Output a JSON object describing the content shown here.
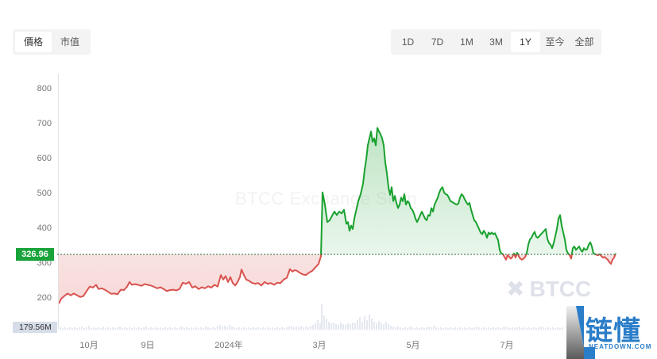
{
  "tabs_left": [
    {
      "label": "價格",
      "active": true
    },
    {
      "label": "市值",
      "active": false
    }
  ],
  "tabs_right": [
    {
      "label": "1D",
      "active": false
    },
    {
      "label": "7D",
      "active": false
    },
    {
      "label": "1M",
      "active": false
    },
    {
      "label": "3M",
      "active": false
    },
    {
      "label": "1Y",
      "active": true
    },
    {
      "label": "至今",
      "active": false
    },
    {
      "label": "全部",
      "active": false
    }
  ],
  "current_price_label": "326.96",
  "volume_label": "179.56M",
  "watermark": "BTCC Exchange Scan",
  "btcc_logo": {
    "symbol": "✖",
    "text": "BTCC"
  },
  "neatdown_logo": {
    "cn": "链懂",
    "en": "NEATDOWN.COM"
  },
  "colors": {
    "up": "#1aa12f",
    "down": "#d9534f",
    "price_tag": "#19a33a",
    "volume": "#c8d2e0",
    "reference_line": "#2d6b36"
  },
  "chart_data": {
    "type": "area",
    "title": "",
    "xlabel": "",
    "ylabel": "",
    "ylim": [
      150,
      850
    ],
    "yticks": [
      200,
      300,
      400,
      500,
      600,
      700,
      800
    ],
    "xticks": [
      "10月",
      "9日",
      "2024年",
      "3月",
      "5月",
      "7月"
    ],
    "reference_line": 326.96,
    "grid": false,
    "legend": "none",
    "series": [
      {
        "name": "Price",
        "x": [
          "2023-09",
          "2023-10",
          "2023-11",
          "2023-12",
          "2024-01",
          "2024-02",
          "2024-02-29",
          "2024-03-01",
          "2024-03-15",
          "2024-04-01",
          "2024-04-10",
          "2024-04-20",
          "2024-05-01",
          "2024-05-15",
          "2024-06-01",
          "2024-06-15",
          "2024-07-01",
          "2024-07-15",
          "2024-08-01",
          "2024-08-15",
          "2024-08-25"
        ],
        "values": [
          185,
          240,
          225,
          245,
          250,
          235,
          300,
          505,
          420,
          680,
          690,
          500,
          440,
          470,
          510,
          420,
          330,
          390,
          440,
          360,
          325
        ]
      },
      {
        "name": "Volume",
        "peak": "179.56M",
        "note": "volume bars along bottom; spike near 3月"
      }
    ]
  }
}
